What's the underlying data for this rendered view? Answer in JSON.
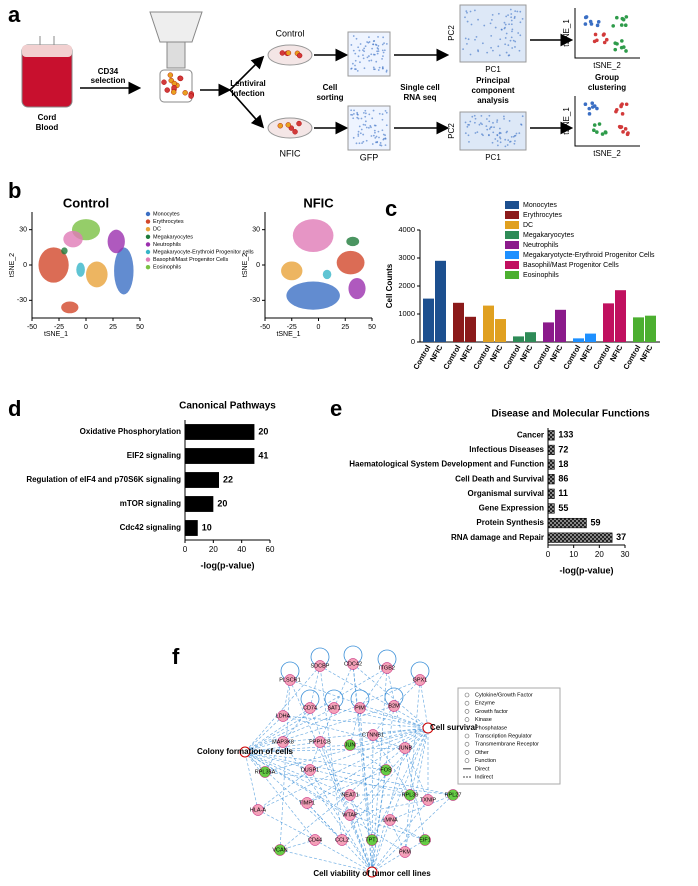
{
  "panel_labels": [
    "a",
    "b",
    "c",
    "d",
    "e",
    "f"
  ],
  "panel_a": {
    "cord_blood": [
      "Cord",
      "Blood"
    ],
    "cd34": [
      "CD34",
      "selection"
    ],
    "lentiviral": [
      "Lentiviral",
      "Infection"
    ],
    "control": "Control",
    "nfic": "NFIC",
    "cell_sorting": [
      "Cell",
      "sorting"
    ],
    "gfp": "GFP",
    "scrna": [
      "Single cell",
      "RNA seq"
    ],
    "pca": [
      "Principal",
      "component",
      "analysis"
    ],
    "pc1": "PC1",
    "pc2": "PC2",
    "tsne1": "tSNE_1",
    "tsne2": "tSNE_2",
    "clustering": [
      "Group",
      "clustering"
    ]
  },
  "chart_data": [
    {
      "type": "scatter",
      "title": "Control",
      "xlabel": "tSNE_1",
      "ylabel": "tSNE_2",
      "xlim": [
        -50,
        50
      ],
      "ylim": [
        -45,
        45
      ],
      "xticks": [
        -50,
        -25,
        0,
        25,
        50
      ],
      "yticks": [
        -30,
        0,
        30
      ],
      "legend": [
        {
          "name": "Monocytes",
          "color": "#3b6fc4"
        },
        {
          "name": "Erythrocytes",
          "color": "#d2472a"
        },
        {
          "name": "DC",
          "color": "#e8a33a"
        },
        {
          "name": "Megakaryocytes",
          "color": "#1e7b3a"
        },
        {
          "name": "Neutrophils",
          "color": "#9b2fae"
        },
        {
          "name": "Megakaryocyte-Erythroid Progenitor cells",
          "color": "#37b5c8"
        },
        {
          "name": "Basophil/Mast Progenitor Cells",
          "color": "#e07bb6"
        },
        {
          "name": "Eosinophils",
          "color": "#7ac143"
        }
      ]
    },
    {
      "type": "scatter",
      "title": "NFIC",
      "xlabel": "tSNE_1",
      "ylabel": "tSNE_2",
      "xlim": [
        -50,
        50
      ],
      "ylim": [
        -45,
        45
      ],
      "xticks": [
        -50,
        -25,
        0,
        25,
        50
      ],
      "yticks": [
        -30,
        0,
        30
      ]
    },
    {
      "type": "bar",
      "ylabel": "Cell Counts",
      "groups": [
        "Control",
        "NFIC"
      ],
      "ylim": [
        0,
        4000
      ],
      "yticks": [
        0,
        1000,
        2000,
        3000,
        4000
      ],
      "series": [
        {
          "name": "Monocytes",
          "color": "#1c4f8f",
          "values": [
            1550,
            2900
          ]
        },
        {
          "name": "Erythrocytes",
          "color": "#8b1a1a",
          "values": [
            1400,
            900
          ]
        },
        {
          "name": "DC",
          "color": "#e0a020",
          "values": [
            1300,
            820
          ]
        },
        {
          "name": "Megakaryocytes",
          "color": "#2e8b57",
          "values": [
            200,
            350
          ]
        },
        {
          "name": "Neutrophils",
          "color": "#8b1a8b",
          "values": [
            700,
            1150
          ]
        },
        {
          "name": "Megakaryotycte-Erythroid Progenitor Cells",
          "color": "#1e90ff",
          "values": [
            130,
            300
          ]
        },
        {
          "name": "Basophil/Mast Progenitor Cells",
          "color": "#c0105f",
          "values": [
            1380,
            1850
          ]
        },
        {
          "name": "Eosinophils",
          "color": "#4caf30",
          "values": [
            880,
            940
          ]
        }
      ]
    },
    {
      "type": "hbar",
      "title": "Canonical Pathways",
      "xlabel": "-log(p-value)",
      "categories": [
        "Oxidative Phosphorylation",
        "EIF2 signaling",
        "Regulation of eIF4 and p70S6K signaling",
        "mTOR signaling",
        "Cdc42 signaling"
      ],
      "values": [
        49,
        49,
        24,
        20,
        9
      ],
      "gene_counts": [
        20,
        41,
        22,
        20,
        10
      ],
      "xlim": [
        0,
        60
      ],
      "xticks": [
        0,
        20,
        40,
        60
      ],
      "color": "#000000"
    },
    {
      "type": "hbar",
      "title": "Disease and Molecular Functions",
      "xlabel": "-log(p-value)",
      "categories": [
        "Cancer",
        "Infectious Diseases",
        "Haematological System Development and Function",
        "Cell Death and Survival",
        "Organismal survival",
        "Gene Expression",
        "Protein Synthesis",
        "RNA damage and Repair"
      ],
      "values": [
        2.5,
        2.5,
        2.5,
        2.5,
        2.5,
        2.5,
        15,
        25
      ],
      "gene_counts": [
        133,
        72,
        18,
        86,
        11,
        55,
        59,
        37
      ],
      "xlim": [
        0,
        30
      ],
      "xticks": [
        0,
        10,
        20,
        30
      ],
      "color": "#222222",
      "pattern": "checker"
    }
  ],
  "panel_f": {
    "nodes": [
      {
        "label": "SDCBP",
        "color": "#f4a0b8"
      },
      {
        "label": "CDC42",
        "color": "#f4a0b8"
      },
      {
        "label": "ITGB2",
        "color": "#f4a0b8"
      },
      {
        "label": "GPX1",
        "color": "#f4a0b8"
      },
      {
        "label": "PLSCR1",
        "color": "#f4a0b8"
      },
      {
        "label": "CD74",
        "color": "#f4a0b8"
      },
      {
        "label": "SAT1",
        "color": "#f4a0b8"
      },
      {
        "label": "PIM",
        "color": "#f4a0b8"
      },
      {
        "label": "B2M",
        "color": "#f4a0b8"
      },
      {
        "label": "LDHA",
        "color": "#f4a0b8"
      },
      {
        "label": "MAP3K8",
        "color": "#f4a0b8"
      },
      {
        "label": "PPP1CB",
        "color": "#f4a0b8"
      },
      {
        "label": "JUN",
        "color": "#66cc44"
      },
      {
        "label": "CTNNB1",
        "color": "#f4a0b8"
      },
      {
        "label": "JUNB",
        "color": "#f4a0b8"
      },
      {
        "label": "RPL35A",
        "color": "#66cc44"
      },
      {
        "label": "DUSP1",
        "color": "#f4a0b8"
      },
      {
        "label": "FOS",
        "color": "#66cc44"
      },
      {
        "label": "RPL39",
        "color": "#66cc44"
      },
      {
        "label": "TXNIP",
        "color": "#f4a0b8"
      },
      {
        "label": "RPL27",
        "color": "#66cc44"
      },
      {
        "label": "HLA-A",
        "color": "#f4a0b8"
      },
      {
        "label": "TIMP1",
        "color": "#f4a0b8"
      },
      {
        "label": "NEAT1",
        "color": "#f4a0b8"
      },
      {
        "label": "WTAP",
        "color": "#f4a0b8"
      },
      {
        "label": "LMNA",
        "color": "#f4a0b8"
      },
      {
        "label": "CD44",
        "color": "#f4a0b8"
      },
      {
        "label": "CCL2",
        "color": "#f4a0b8"
      },
      {
        "label": "TPT1",
        "color": "#66cc44"
      },
      {
        "label": "EIF1",
        "color": "#66cc44"
      },
      {
        "label": "PKM",
        "color": "#f4a0b8"
      },
      {
        "label": "VCAN",
        "color": "#66cc44"
      }
    ],
    "functions": [
      "Cell survival",
      "Colony formation of cells",
      "Cell viability of tumor cell lines"
    ],
    "legend": [
      "Cytokine/Growth Factor",
      "Enzyme",
      "Growth factor",
      "Kinase",
      "Phosphatase",
      "Transcription Regulator",
      "Transmembrane Receptor",
      "Other",
      "Function",
      "Direct",
      "Indirect"
    ]
  }
}
